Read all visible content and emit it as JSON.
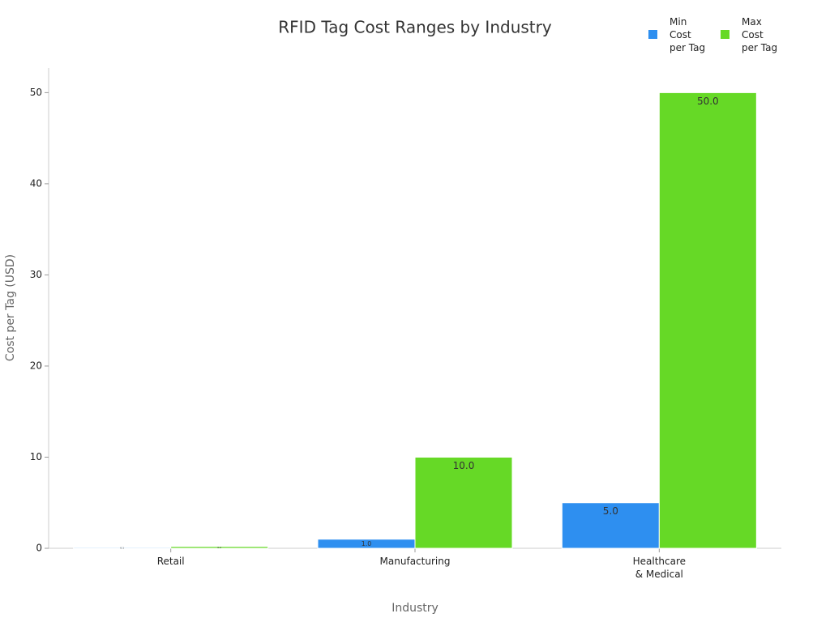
{
  "chart_data": {
    "type": "bar",
    "title": "RFID Tag Cost Ranges by Industry",
    "x_label": "Industry",
    "y_label": "Cost per Tag (USD)",
    "categories": [
      "Retail",
      "Manufacturing",
      "Healthcare & Medical"
    ],
    "series": [
      {
        "name": "Min Cost per Tag",
        "color": "#2e8ff0",
        "values": [
          0.1,
          1,
          5
        ],
        "value_labels": [
          "0.1",
          "1.0",
          "5.0"
        ]
      },
      {
        "name": "Max Cost per Tag",
        "color": "#66d926",
        "values": [
          0.2,
          10,
          50
        ],
        "value_labels": [
          "0.2",
          "10.0",
          "50.0"
        ]
      }
    ],
    "ylim": [
      0,
      52.7
    ],
    "yticks": [
      0,
      10,
      20,
      30,
      40,
      50
    ],
    "grid": false
  }
}
